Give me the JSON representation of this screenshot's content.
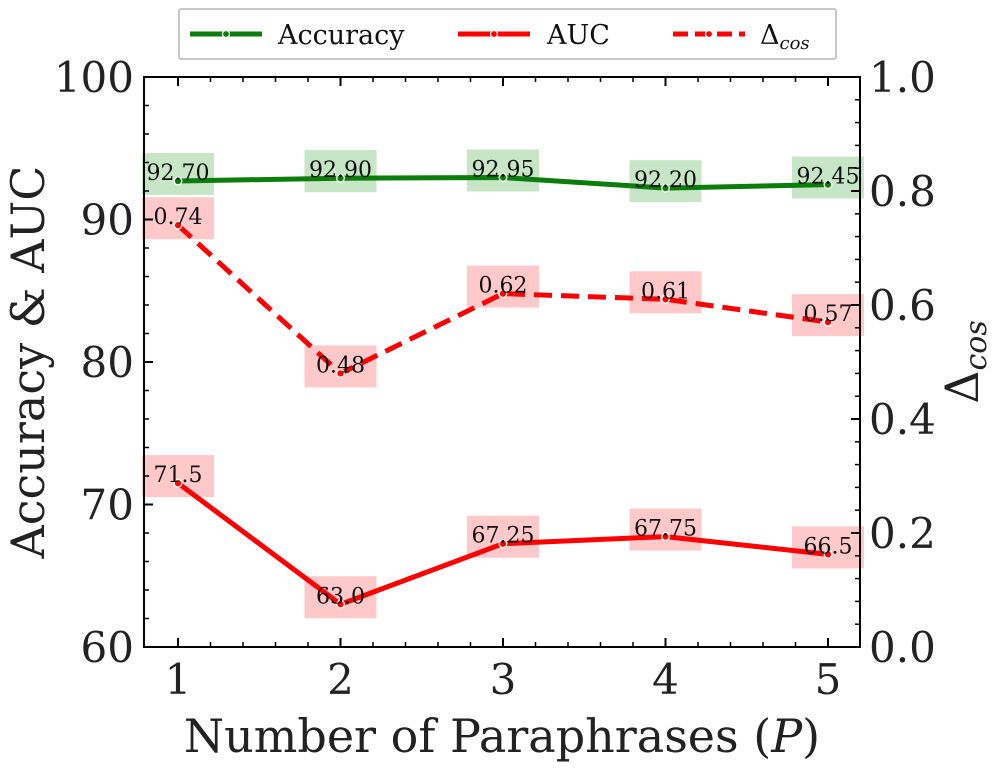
{
  "chart_data": {
    "type": "line",
    "x": [
      1,
      2,
      3,
      4,
      5
    ],
    "xticks": [
      "1",
      "2",
      "3",
      "4",
      "5"
    ],
    "xlabel": "Number of Paraphrases (P)",
    "xlabel_prefix": "Number of Paraphrases (",
    "xlabel_var": "P",
    "xlabel_suffix": ")",
    "ylabel_left": "Accuracy & AUC",
    "ylabel_right": "Δcos",
    "ylabel_right_main": "Δ",
    "ylabel_right_sub": "cos",
    "ylim_left": [
      60,
      100
    ],
    "yticks_left": [
      "60",
      "70",
      "80",
      "90",
      "100"
    ],
    "ylim_right": [
      0.0,
      1.0
    ],
    "yticks_right": [
      "0.0",
      "0.2",
      "0.4",
      "0.6",
      "0.8",
      "1.0"
    ],
    "legend_position": "top-center",
    "series": [
      {
        "name": "Accuracy",
        "axis": "left",
        "values": [
          92.7,
          92.9,
          92.95,
          92.2,
          92.45
        ],
        "labels": [
          "92.70",
          "92.90",
          "92.95",
          "92.20",
          "92.45"
        ],
        "color": "#0a7d0a",
        "label_bg": "#c6e6c6",
        "dashed": false
      },
      {
        "name": "AUC",
        "axis": "left",
        "values": [
          71.5,
          63.0,
          67.25,
          67.75,
          66.5
        ],
        "labels": [
          "71.5",
          "63.0",
          "67.25",
          "67.75",
          "66.5"
        ],
        "color": "#ff0000",
        "label_bg": "#ffc9c9",
        "dashed": false
      },
      {
        "name": "Δcos",
        "axis": "right",
        "values": [
          0.74,
          0.48,
          0.62,
          0.61,
          0.57
        ],
        "labels": [
          "0.74",
          "0.48",
          "0.62",
          "0.61",
          "0.57"
        ],
        "color": "#ff0000",
        "label_bg": "#ffc9c9",
        "dashed": true
      }
    ],
    "legend": {
      "entries": [
        {
          "text": "Accuracy"
        },
        {
          "text": "AUC"
        },
        {
          "main": "Δ",
          "sub": "cos"
        }
      ]
    }
  }
}
